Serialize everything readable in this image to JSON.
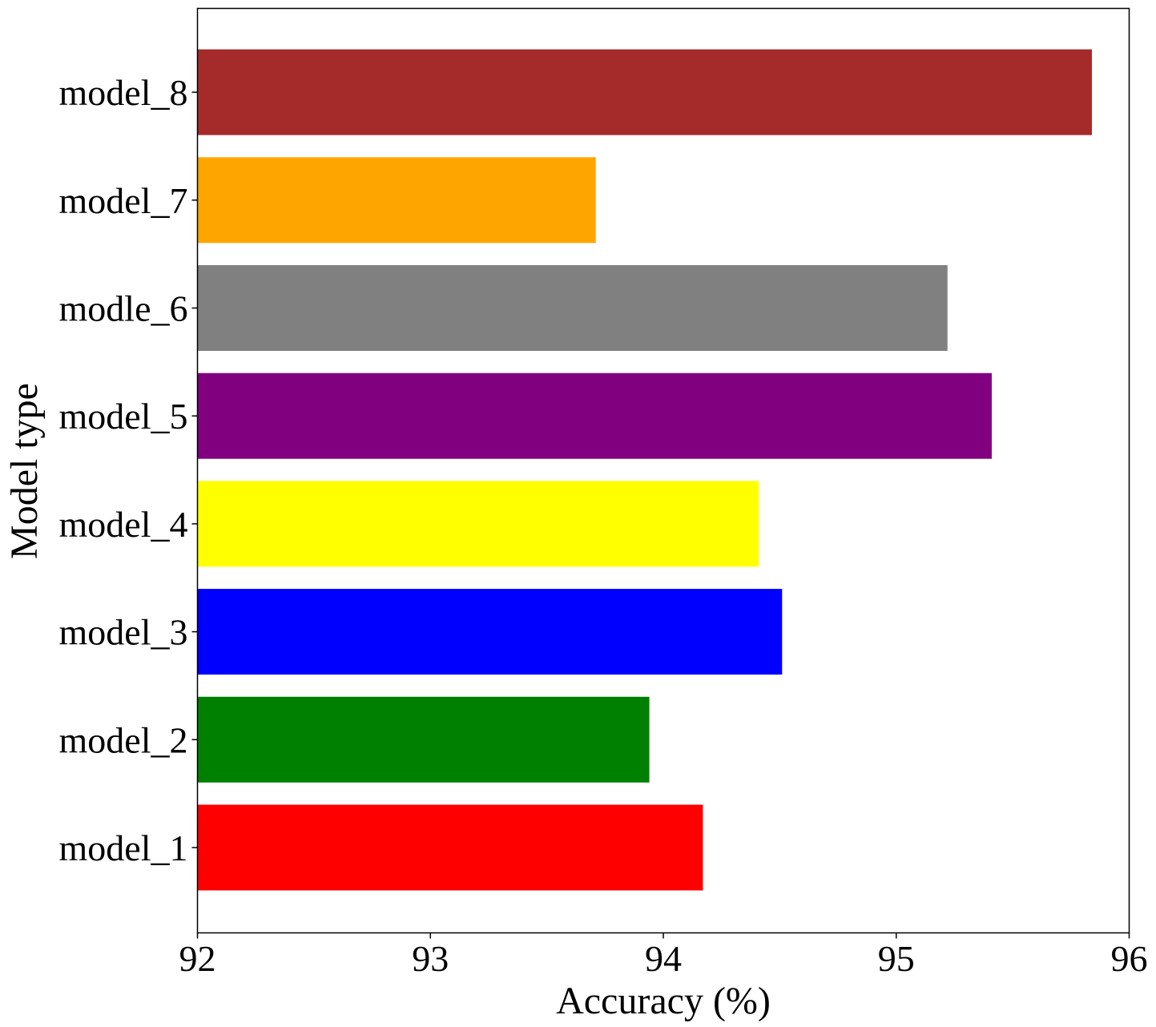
{
  "chart_data": {
    "type": "bar",
    "orientation": "horizontal",
    "title": "",
    "xlabel": "Accuracy (%)",
    "ylabel": "Model type",
    "xlim": [
      92,
      96
    ],
    "xticks": [
      "92",
      "93",
      "94",
      "95",
      "96"
    ],
    "grid": false,
    "categories": [
      "model_1",
      "model_2",
      "model_3",
      "model_4",
      "model_5",
      "modle_6",
      "model_7",
      "model_8"
    ],
    "values": [
      94.17,
      93.94,
      94.51,
      94.41,
      95.41,
      95.22,
      93.71,
      95.84
    ],
    "colors": [
      "#ff0000",
      "#008000",
      "#0000ff",
      "#ffff00",
      "#800080",
      "#808080",
      "#ffa500",
      "#a52a2a"
    ]
  }
}
